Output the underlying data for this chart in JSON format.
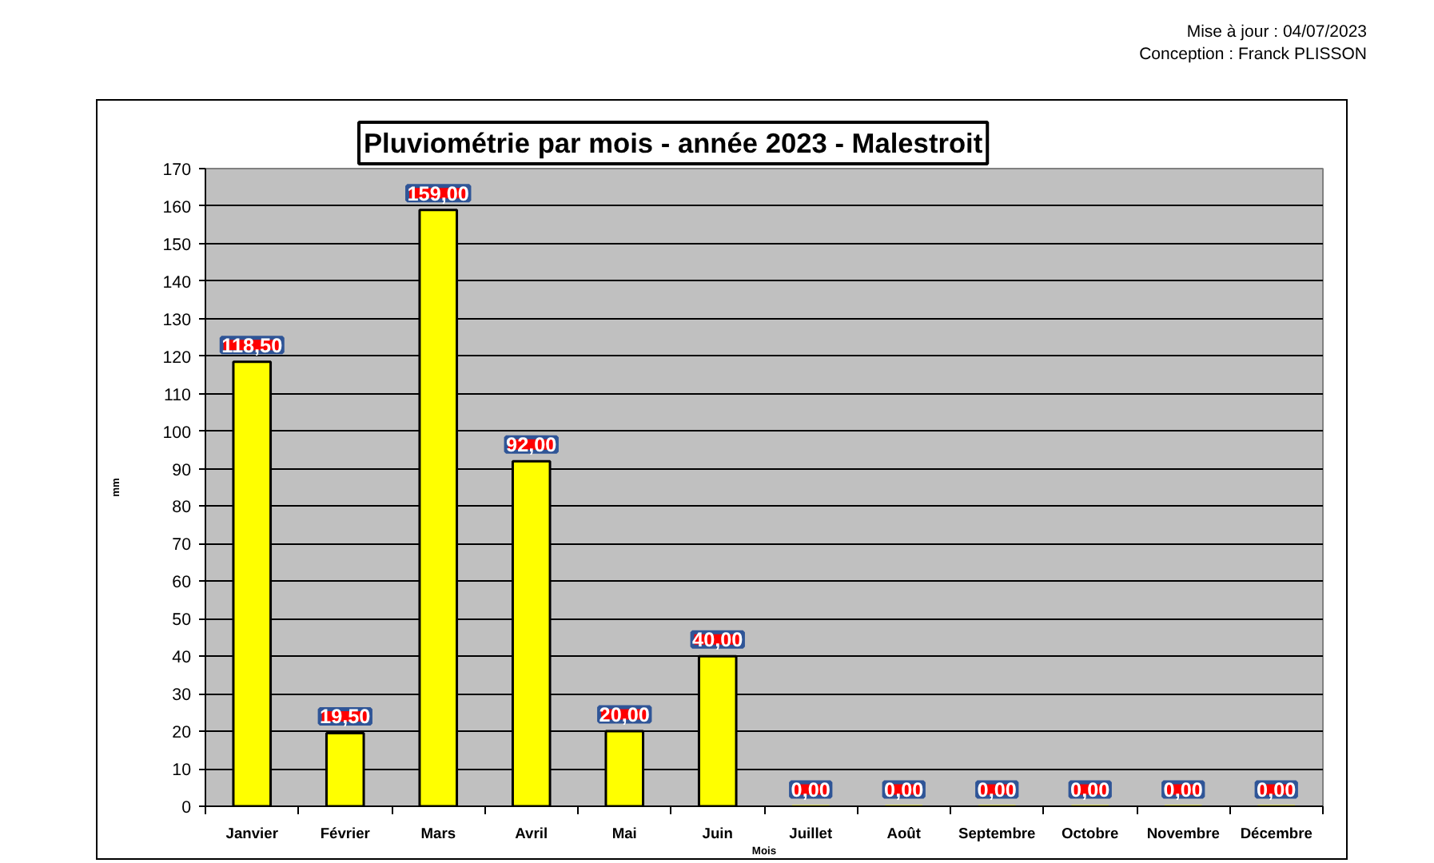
{
  "chart_data": {
    "type": "bar",
    "title": "Pluviométrie par mois - année 2023 - Malestroit",
    "xlabel": "Mois",
    "ylabel": "mm",
    "annotations": [
      "Mise à jour : 04/07/2023",
      "Conception : Franck PLISSON"
    ],
    "categories": [
      "Janvier",
      "Février",
      "Mars",
      "Avril",
      "Mai",
      "Juin",
      "Juillet",
      "Août",
      "Septembre",
      "Octobre",
      "Novembre",
      "Décembre"
    ],
    "values": [
      118.5,
      19.5,
      159,
      92,
      20,
      40,
      0,
      0,
      0,
      0,
      0,
      0
    ],
    "color": "#ffff00",
    "value_labels": [
      "118,50",
      "19,50",
      "159,00",
      "92,00",
      "20,00",
      "40,00",
      "0,00",
      "0,00",
      "0,00",
      "0,00",
      "0,00",
      "0,00"
    ],
    "ylim": [
      0,
      170
    ],
    "yticks": [
      0,
      10,
      20,
      30,
      40,
      50,
      60,
      70,
      80,
      90,
      100,
      110,
      120,
      130,
      140,
      150,
      160,
      170
    ],
    "grid": "y"
  }
}
